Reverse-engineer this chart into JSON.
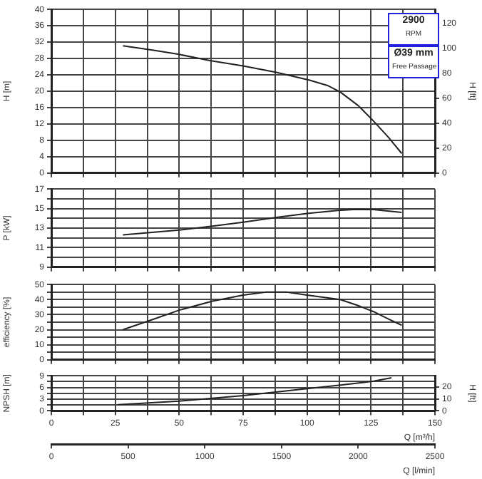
{
  "chart_data": [
    {
      "type": "line",
      "ylabel": "H [m]",
      "y2label": "H [ft]",
      "annotations": [
        "2900",
        "RPM",
        "Ø39 mm",
        "Free Passage"
      ],
      "grid": true,
      "legend": false,
      "marker": "none",
      "line_style": "solid",
      "tick_labels": "y",
      "xlim": [
        0,
        150
      ],
      "xticks": [
        0,
        {
          "value": 12.5,
          "label": null
        },
        25,
        {
          "value": 37.5,
          "label": null
        },
        50,
        {
          "value": 62.5,
          "label": null
        },
        75,
        {
          "value": 87.5,
          "label": null
        },
        100,
        {
          "value": 112.5,
          "label": null
        },
        125,
        {
          "value": 137.5,
          "label": null
        },
        150
      ],
      "ylim": [
        0,
        40
      ],
      "yticks": [
        0,
        4,
        8,
        12,
        16,
        20,
        24,
        28,
        32,
        36,
        40
      ],
      "y2lim": [
        0,
        131.2
      ],
      "y2ticks": [
        0,
        20,
        40,
        60,
        80,
        100,
        120
      ],
      "series": [
        {
          "color": "#222222",
          "x": [
            28,
            40,
            50,
            62,
            75,
            88,
            101,
            108,
            113,
            120,
            126,
            132,
            137
          ],
          "values": [
            31.1,
            30,
            29,
            27.5,
            26.2,
            24.6,
            22.7,
            21.4,
            19.8,
            16.5,
            12.7,
            8.6,
            4.8
          ]
        }
      ]
    },
    {
      "type": "line",
      "ylabel": "P [kW]",
      "grid": true,
      "legend": false,
      "marker": "none",
      "line_style": "solid",
      "tick_labels": "y",
      "xlim": [
        0,
        150
      ],
      "xticks": [
        0,
        {
          "value": 12.5,
          "label": null
        },
        25,
        {
          "value": 37.5,
          "label": null
        },
        50,
        {
          "value": 62.5,
          "label": null
        },
        75,
        {
          "value": 87.5,
          "label": null
        },
        100,
        {
          "value": 112.5,
          "label": null
        },
        125,
        {
          "value": 137.5,
          "label": null
        },
        150
      ],
      "ylim": [
        9,
        17
      ],
      "yticks": [
        9,
        {
          "value": 10,
          "label": null
        },
        11,
        {
          "value": 12,
          "label": null
        },
        13,
        {
          "value": 14,
          "label": null
        },
        15,
        {
          "value": 16,
          "label": null
        },
        17
      ],
      "series": [
        {
          "color": "#222222",
          "x": [
            28,
            50,
            63,
            75,
            88,
            100,
            112,
            118,
            126,
            137
          ],
          "values": [
            12.3,
            12.8,
            13.2,
            13.6,
            14.1,
            14.5,
            14.8,
            14.9,
            14.9,
            14.6
          ]
        }
      ]
    },
    {
      "type": "line",
      "ylabel": "efficiency [%]",
      "grid": true,
      "legend": false,
      "marker": "none",
      "line_style": "solid",
      "tick_labels": "y",
      "xlim": [
        0,
        150
      ],
      "xticks": [
        0,
        {
          "value": 12.5,
          "label": null
        },
        25,
        {
          "value": 37.5,
          "label": null
        },
        50,
        {
          "value": 62.5,
          "label": null
        },
        75,
        {
          "value": 87.5,
          "label": null
        },
        100,
        {
          "value": 112.5,
          "label": null
        },
        125,
        {
          "value": 137.5,
          "label": null
        },
        150
      ],
      "ylim": [
        0,
        50
      ],
      "yticks": [
        0,
        {
          "value": 5,
          "label": null
        },
        10,
        {
          "value": 15,
          "label": null
        },
        20,
        {
          "value": 25,
          "label": null
        },
        30,
        {
          "value": 35,
          "label": null
        },
        40,
        {
          "value": 45,
          "label": null
        },
        50
      ],
      "series": [
        {
          "color": "#222222",
          "x": [
            28,
            40,
            50,
            63,
            75,
            84,
            92,
            100,
            113,
            120,
            126,
            132,
            137
          ],
          "values": [
            20,
            27,
            33,
            39,
            43,
            45,
            45,
            43,
            40,
            36,
            32,
            27,
            23
          ]
        }
      ]
    },
    {
      "type": "line",
      "ylabel": "NPSH [m]",
      "y2label": "H [ft]",
      "xlabel": "Q [m³/h]",
      "x2label": "Q [l/min]",
      "grid": true,
      "legend": false,
      "marker": "none",
      "line_style": "solid",
      "xlim": [
        0,
        150
      ],
      "xticks": [
        0,
        {
          "value": 12.5,
          "label": null
        },
        25,
        {
          "value": 37.5,
          "label": null
        },
        50,
        {
          "value": 62.5,
          "label": null
        },
        75,
        {
          "value": 87.5,
          "label": null
        },
        100,
        {
          "value": 112.5,
          "label": null
        },
        125,
        {
          "value": 137.5,
          "label": null
        },
        150
      ],
      "x2lim": [
        0,
        2500
      ],
      "x2ticks": [
        0,
        500,
        1000,
        1500,
        2000,
        2500
      ],
      "ylim": [
        0,
        9
      ],
      "yticks": [
        0,
        {
          "value": 1.5,
          "label": null
        },
        3,
        {
          "value": 4.5,
          "label": null
        },
        6,
        {
          "value": 7.5,
          "label": null
        },
        9
      ],
      "y2lim": [
        0,
        29.5
      ],
      "y2ticks": [
        0,
        10,
        20
      ],
      "series": [
        {
          "color": "#222222",
          "x": [
            26,
            50,
            75,
            100,
            113,
            126,
            133
          ],
          "values": [
            1.6,
            2.5,
            3.9,
            5.7,
            6.6,
            7.6,
            8.5
          ]
        }
      ]
    }
  ]
}
